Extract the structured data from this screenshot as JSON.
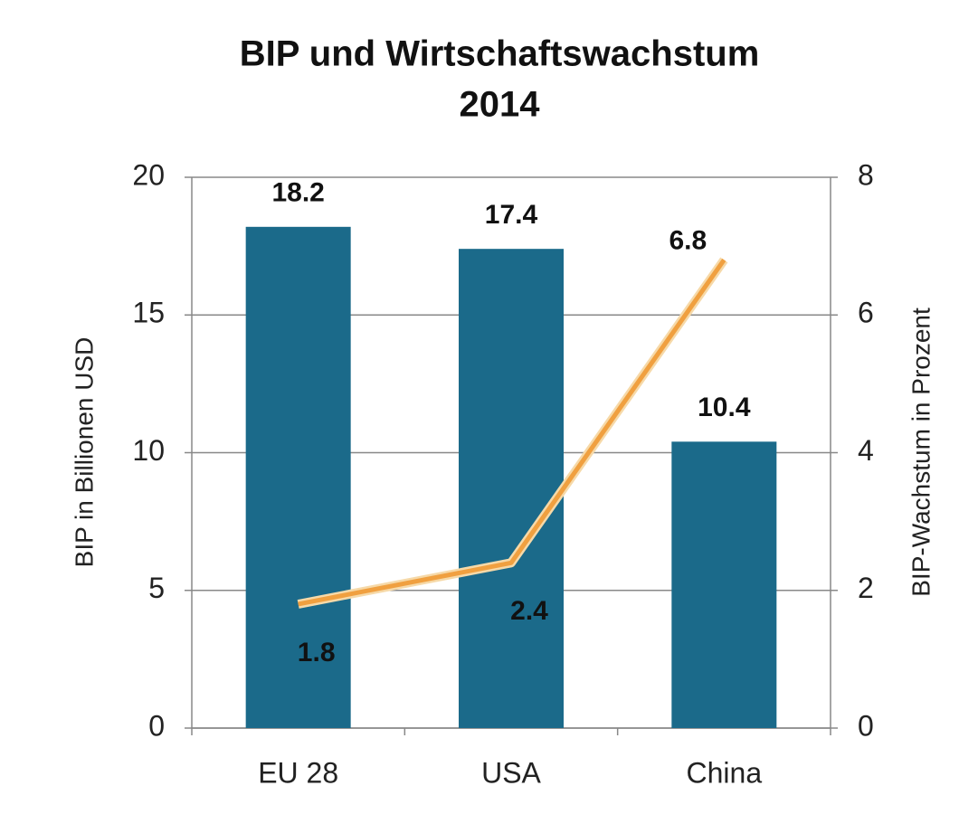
{
  "chart_data": {
    "type": "bar",
    "title": [
      "BIP und Wirtschaftswachstum",
      "2014"
    ],
    "categories": [
      "EU 28",
      "USA",
      "China"
    ],
    "series": [
      {
        "name": "BIP in Billionen USD",
        "type": "bar",
        "color": "#1b6a8a",
        "values": [
          18.2,
          17.4,
          10.4
        ]
      },
      {
        "name": "BIP-Wachstum in Prozent",
        "type": "line",
        "axis": "y2",
        "color": "#f0a040",
        "values": [
          1.8,
          2.4,
          6.8
        ]
      }
    ],
    "ylabel": "BIP in Billionen USD",
    "y2label": "BIP-Wachstum in Prozent",
    "ylim": [
      0,
      20
    ],
    "yticks": [
      0,
      5,
      10,
      15,
      20
    ],
    "y2lim": [
      0,
      8
    ],
    "y2ticks": [
      0,
      2,
      4,
      6,
      8
    ],
    "grid": true
  }
}
